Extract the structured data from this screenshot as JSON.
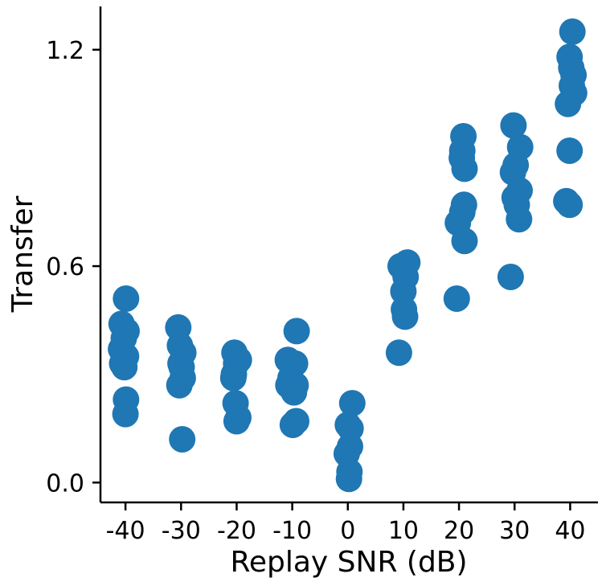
{
  "chart_data": {
    "type": "scatter",
    "title": "",
    "xlabel": "Replay SNR (dB)",
    "ylabel": "Transfer",
    "xlim": [
      -44.5,
      45
    ],
    "ylim": [
      -0.055,
      1.32
    ],
    "xticks": [
      -40,
      -30,
      -20,
      -10,
      0,
      10,
      20,
      30,
      40
    ],
    "xtick_labels": [
      "-40",
      "-30",
      "-20",
      "-10",
      "0",
      "10",
      "20",
      "30",
      "40"
    ],
    "yticks": [
      0.0,
      0.6,
      1.2
    ],
    "ytick_labels": [
      "0.0",
      "0.6",
      "1.2"
    ],
    "grid": false,
    "color": "#1f77b4",
    "points": [
      {
        "x": -39.9,
        "y": 0.51
      },
      {
        "x": -40.7,
        "y": 0.44
      },
      {
        "x": -39.8,
        "y": 0.42
      },
      {
        "x": -40.3,
        "y": 0.4
      },
      {
        "x": -40.8,
        "y": 0.37
      },
      {
        "x": -39.9,
        "y": 0.35
      },
      {
        "x": -40.6,
        "y": 0.33
      },
      {
        "x": -40.2,
        "y": 0.32
      },
      {
        "x": -39.9,
        "y": 0.23
      },
      {
        "x": -40.0,
        "y": 0.19
      },
      {
        "x": -30.5,
        "y": 0.43
      },
      {
        "x": -30.2,
        "y": 0.38
      },
      {
        "x": -29.6,
        "y": 0.36
      },
      {
        "x": -30.1,
        "y": 0.33
      },
      {
        "x": -29.9,
        "y": 0.32
      },
      {
        "x": -29.7,
        "y": 0.29
      },
      {
        "x": -30.3,
        "y": 0.27
      },
      {
        "x": -29.8,
        "y": 0.12
      },
      {
        "x": -20.4,
        "y": 0.36
      },
      {
        "x": -19.6,
        "y": 0.34
      },
      {
        "x": -20.1,
        "y": 0.33
      },
      {
        "x": -20.5,
        "y": 0.3
      },
      {
        "x": -20.6,
        "y": 0.29
      },
      {
        "x": -20.2,
        "y": 0.22
      },
      {
        "x": -19.7,
        "y": 0.18
      },
      {
        "x": -20.0,
        "y": 0.17
      },
      {
        "x": -9.2,
        "y": 0.42
      },
      {
        "x": -10.8,
        "y": 0.34
      },
      {
        "x": -9.5,
        "y": 0.33
      },
      {
        "x": -10.3,
        "y": 0.29
      },
      {
        "x": -10.7,
        "y": 0.27
      },
      {
        "x": -9.4,
        "y": 0.27
      },
      {
        "x": -9.7,
        "y": 0.25
      },
      {
        "x": -9.3,
        "y": 0.17
      },
      {
        "x": -9.9,
        "y": 0.16
      },
      {
        "x": 0.8,
        "y": 0.22
      },
      {
        "x": 0.0,
        "y": 0.16
      },
      {
        "x": 0.5,
        "y": 0.15
      },
      {
        "x": 0.4,
        "y": 0.1
      },
      {
        "x": -0.2,
        "y": 0.08
      },
      {
        "x": 0.3,
        "y": 0.03
      },
      {
        "x": 0.2,
        "y": 0.01
      },
      {
        "x": 9.5,
        "y": 0.6
      },
      {
        "x": 10.7,
        "y": 0.61
      },
      {
        "x": 10.4,
        "y": 0.57
      },
      {
        "x": 10.0,
        "y": 0.53
      },
      {
        "x": 10.1,
        "y": 0.48
      },
      {
        "x": 10.3,
        "y": 0.46
      },
      {
        "x": 9.2,
        "y": 0.36
      },
      {
        "x": 20.8,
        "y": 0.96
      },
      {
        "x": 20.6,
        "y": 0.92
      },
      {
        "x": 20.5,
        "y": 0.9
      },
      {
        "x": 21.0,
        "y": 0.87
      },
      {
        "x": 20.9,
        "y": 0.77
      },
      {
        "x": 20.6,
        "y": 0.75
      },
      {
        "x": 19.8,
        "y": 0.72
      },
      {
        "x": 21.0,
        "y": 0.67
      },
      {
        "x": 19.6,
        "y": 0.51
      },
      {
        "x": 29.8,
        "y": 0.99
      },
      {
        "x": 31.0,
        "y": 0.93
      },
      {
        "x": 30.2,
        "y": 0.88
      },
      {
        "x": 29.7,
        "y": 0.86
      },
      {
        "x": 30.9,
        "y": 0.81
      },
      {
        "x": 30.0,
        "y": 0.79
      },
      {
        "x": 30.4,
        "y": 0.77
      },
      {
        "x": 30.8,
        "y": 0.73
      },
      {
        "x": 29.3,
        "y": 0.57
      },
      {
        "x": 40.4,
        "y": 1.25
      },
      {
        "x": 39.9,
        "y": 1.18
      },
      {
        "x": 40.2,
        "y": 1.15
      },
      {
        "x": 40.6,
        "y": 1.13
      },
      {
        "x": 40.3,
        "y": 1.1
      },
      {
        "x": 40.7,
        "y": 1.08
      },
      {
        "x": 39.6,
        "y": 1.05
      },
      {
        "x": 39.9,
        "y": 0.92
      },
      {
        "x": 39.3,
        "y": 0.78
      },
      {
        "x": 39.9,
        "y": 0.77
      }
    ]
  }
}
